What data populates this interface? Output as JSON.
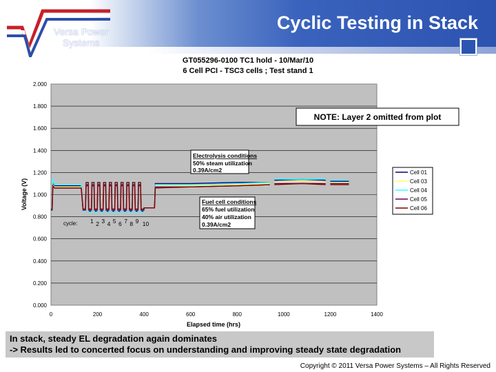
{
  "header": {
    "title": "Cyclic Testing in Stack",
    "logo_text_1": "Versa Power",
    "logo_text_2": "Systems"
  },
  "chart_data": {
    "type": "line",
    "title_line1": "GT055296-0100 TC1 hold  -  10/Mar/10",
    "title_line2": "6 Cell PCI - TSC3 cells ; Test stand 1",
    "xlabel": "Elapsed time (hrs)",
    "ylabel": "Voltage (V)",
    "xlim": [
      0,
      1400
    ],
    "ylim": [
      0,
      2
    ],
    "xticks": [
      0,
      200,
      400,
      600,
      800,
      1000,
      1200,
      1400
    ],
    "yticks": [
      "0.000",
      "0.200",
      "0.400",
      "0.600",
      "0.800",
      "1.000",
      "1.200",
      "1.400",
      "1.600",
      "1.800",
      "2.000"
    ],
    "grid": "horizontal",
    "legend": "right",
    "background": "#c0c0c0",
    "x": [
      0,
      5,
      8,
      15,
      130,
      138,
      148,
      151,
      160,
      162,
      174,
      176,
      185,
      187,
      199,
      201,
      210,
      212,
      224,
      226,
      235,
      237,
      249,
      251,
      260,
      262,
      274,
      276,
      285,
      287,
      299,
      301,
      310,
      312,
      324,
      326,
      335,
      337,
      349,
      351,
      360,
      362,
      374,
      376,
      385,
      387,
      399,
      400,
      445,
      448,
      600,
      800,
      940,
      950,
      960,
      1080,
      1180,
      1190,
      1200,
      1280
    ],
    "series": [
      {
        "name": "Cell 01",
        "color": "#000080",
        "y": [
          0.86,
          0.86,
          1.1,
          1.08,
          1.08,
          0.86,
          0.86,
          1.09,
          1.09,
          0.85,
          0.85,
          1.09,
          1.09,
          0.85,
          0.85,
          1.09,
          1.09,
          0.85,
          0.85,
          1.09,
          1.09,
          0.85,
          0.85,
          1.09,
          1.09,
          0.85,
          0.85,
          1.09,
          1.09,
          0.85,
          0.85,
          1.09,
          1.09,
          0.85,
          0.85,
          1.09,
          1.09,
          0.85,
          0.85,
          1.09,
          1.09,
          0.85,
          0.85,
          1.09,
          1.09,
          0.85,
          0.85,
          0.88,
          0.88,
          1.1,
          1.1,
          1.11,
          1.11,
          null,
          1.13,
          1.14,
          1.13,
          null,
          1.12,
          1.12
        ]
      },
      {
        "name": "Cell 03",
        "color": "#ffff66",
        "y": [
          0.87,
          0.87,
          1.09,
          1.07,
          1.07,
          0.86,
          0.86,
          1.08,
          1.08,
          0.86,
          0.86,
          1.08,
          1.08,
          0.86,
          0.86,
          1.08,
          1.08,
          0.86,
          0.86,
          1.08,
          1.08,
          0.86,
          0.86,
          1.08,
          1.08,
          0.86,
          0.86,
          1.08,
          1.08,
          0.86,
          0.86,
          1.08,
          1.08,
          0.86,
          0.86,
          1.08,
          1.08,
          0.86,
          0.86,
          1.08,
          1.08,
          0.86,
          0.86,
          1.08,
          1.08,
          0.86,
          0.86,
          0.88,
          0.88,
          1.08,
          1.08,
          1.09,
          1.1,
          null,
          1.11,
          1.12,
          1.11,
          null,
          1.11,
          1.11
        ]
      },
      {
        "name": "Cell 04",
        "color": "#33ffff",
        "y": [
          0.85,
          0.85,
          1.15,
          1.09,
          1.09,
          0.85,
          0.85,
          1.1,
          1.1,
          0.84,
          0.84,
          1.1,
          1.1,
          0.84,
          0.84,
          1.1,
          1.1,
          0.84,
          0.84,
          1.1,
          1.1,
          0.84,
          0.84,
          1.1,
          1.1,
          0.84,
          0.84,
          1.1,
          1.1,
          0.84,
          0.84,
          1.1,
          1.1,
          0.84,
          0.84,
          1.1,
          1.1,
          0.84,
          0.84,
          1.1,
          1.1,
          0.84,
          0.84,
          1.1,
          1.1,
          0.84,
          0.84,
          0.88,
          0.88,
          1.09,
          1.09,
          1.1,
          1.11,
          null,
          1.14,
          1.14,
          1.14,
          null,
          1.13,
          1.13
        ]
      },
      {
        "name": "Cell 05",
        "color": "#660066",
        "y": [
          0.86,
          0.86,
          1.08,
          1.06,
          1.06,
          0.86,
          0.86,
          1.08,
          1.08,
          0.86,
          0.86,
          1.08,
          1.08,
          0.86,
          0.86,
          1.08,
          1.08,
          0.86,
          0.86,
          1.08,
          1.08,
          0.86,
          0.86,
          1.08,
          1.08,
          0.86,
          0.86,
          1.08,
          1.08,
          0.86,
          0.86,
          1.08,
          1.08,
          0.86,
          0.86,
          1.08,
          1.08,
          0.86,
          0.86,
          1.08,
          1.08,
          0.86,
          0.86,
          1.08,
          1.08,
          0.86,
          0.86,
          0.88,
          0.88,
          1.07,
          1.07,
          1.08,
          1.09,
          null,
          1.1,
          1.1,
          1.1,
          null,
          1.1,
          1.1
        ]
      },
      {
        "name": "Cell 06",
        "color": "#800000",
        "y": [
          0.87,
          0.87,
          1.08,
          1.06,
          1.06,
          0.87,
          0.87,
          1.11,
          1.11,
          0.87,
          0.87,
          1.11,
          1.11,
          0.87,
          0.87,
          1.11,
          1.11,
          0.87,
          0.87,
          1.11,
          1.11,
          0.87,
          0.87,
          1.11,
          1.11,
          0.87,
          0.87,
          1.11,
          1.11,
          0.87,
          0.87,
          1.11,
          1.11,
          0.87,
          0.87,
          1.11,
          1.11,
          0.87,
          0.87,
          1.11,
          1.11,
          0.87,
          0.87,
          1.11,
          1.11,
          0.87,
          0.87,
          0.88,
          0.88,
          1.06,
          1.07,
          1.08,
          1.09,
          null,
          1.09,
          1.1,
          1.09,
          null,
          1.09,
          1.09
        ]
      }
    ],
    "note": "NOTE: Layer 2 omitted from plot",
    "el_box": {
      "heading": "Electrolysis conditions",
      "line1": "50% steam utilization",
      "line2": "0.39A/cm2"
    },
    "fc_box": {
      "heading": "Fuel cell conditions",
      "line1": "65% fuel utilization",
      "line2": "40% air utilization",
      "line3": "0.39A/cm2"
    },
    "cycle_label": "cycle:",
    "cycles": [
      "1",
      "2",
      "3",
      "4",
      "5",
      "6",
      "7",
      "8",
      "9",
      "10"
    ]
  },
  "footer": {
    "line1": "In stack, steady EL degradation again dominates",
    "line2": "-> Results led to concerted focus on understanding and improving steady state degradation",
    "copyright": "Copyright © 2011 Versa Power Systems – All Rights Reserved"
  }
}
